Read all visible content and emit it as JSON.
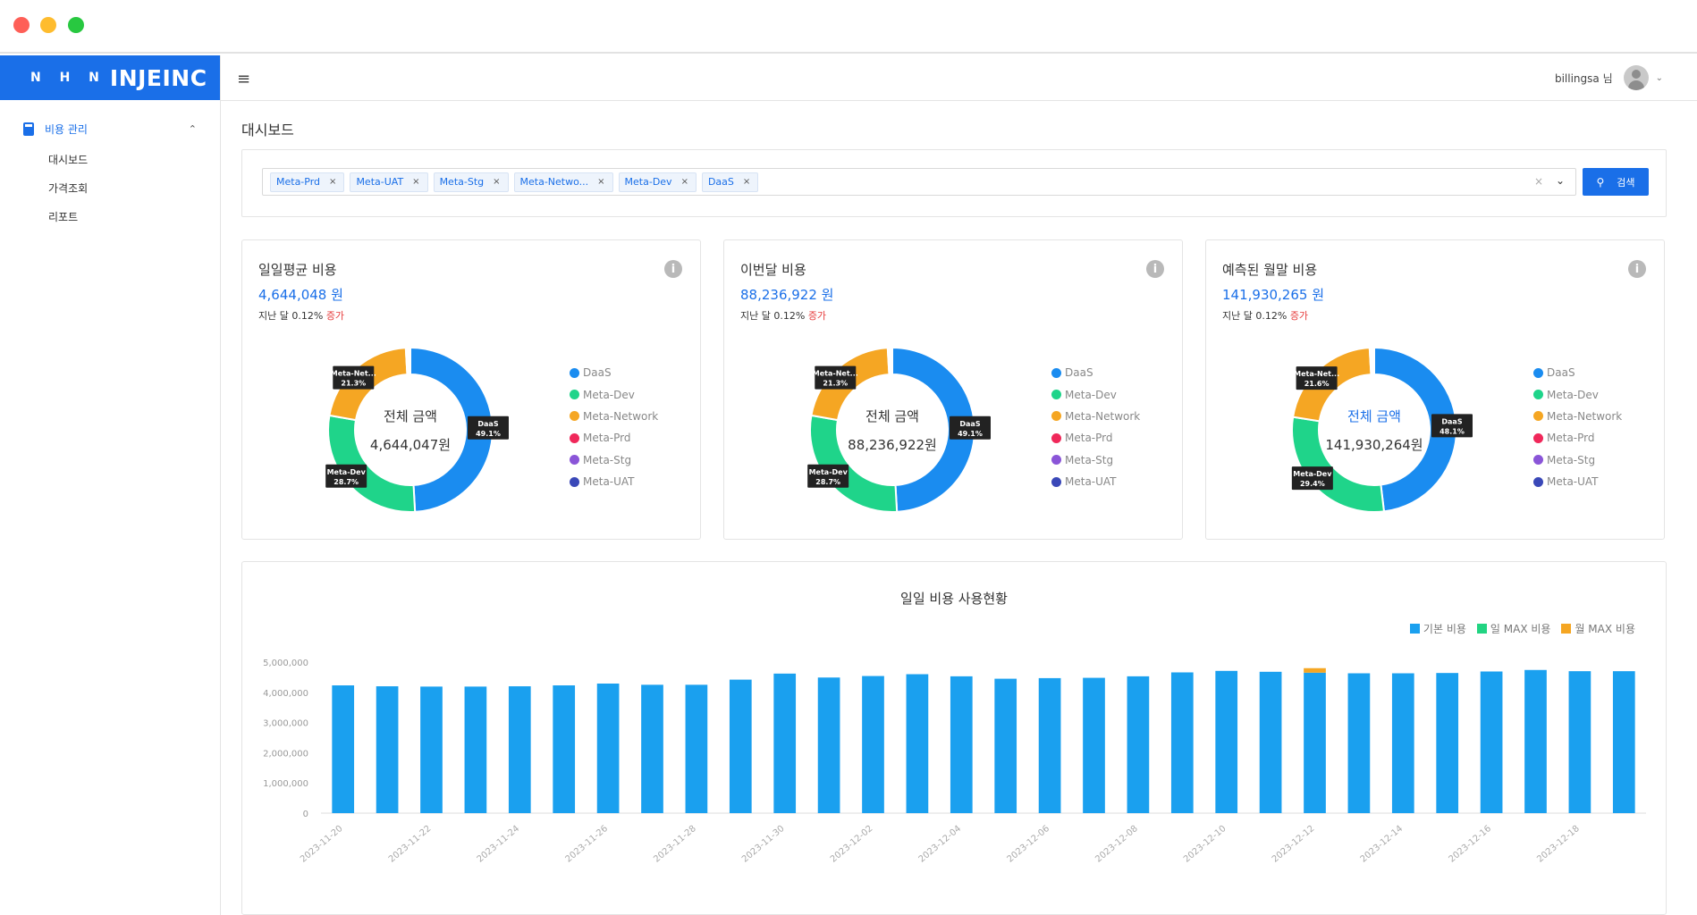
{
  "sidebar": {
    "logo_prefix": "N H N",
    "logo_brand": "INJEINC",
    "group_label": "비용 관리",
    "items": [
      {
        "label": "대시보드"
      },
      {
        "label": "가격조회"
      },
      {
        "label": "리포트"
      }
    ]
  },
  "topbar": {
    "username": "billingsa 님"
  },
  "page": {
    "title": "대시보드"
  },
  "filter": {
    "tags": [
      "Meta-Prd",
      "Meta-UAT",
      "Meta-Stg",
      "Meta-Netwo...",
      "Meta-Dev",
      "DaaS"
    ],
    "search_label": "검색"
  },
  "colors": {
    "accent": "#1a6fe8",
    "DaaS": "#1a8cf0",
    "Meta-Dev": "#1fd48a",
    "Meta-Network": "#f5a623",
    "Meta-Prd": "#f0285a",
    "Meta-Stg": "#8a55d8",
    "Meta-UAT": "#3a48b8",
    "bar_base": "#1aa0ef",
    "bar_daymax": "#22d482",
    "bar_monthmax": "#f5a623"
  },
  "cards": [
    {
      "title": "일일평균 비용",
      "amount": "4,644,048 원",
      "change_prefix": "지난 달 0.12%",
      "change_word": "증가",
      "center_label": "전체 금액",
      "center_value": "4,644,047원",
      "center_label_color": "#333333",
      "slices": [
        {
          "name": "DaaS",
          "value": 49.1,
          "label": "DaaS\n49.1%"
        },
        {
          "name": "Meta-Dev",
          "value": 28.7,
          "label": "Meta-Dev\n28.7%"
        },
        {
          "name": "Meta-Network",
          "value": 21.3,
          "label": "Meta-Net...\n21.3%"
        },
        {
          "name": "Meta-Prd",
          "value": 0.3,
          "label": ""
        },
        {
          "name": "Meta-Stg",
          "value": 0.3,
          "label": ""
        },
        {
          "name": "Meta-UAT",
          "value": 0.3,
          "label": ""
        }
      ]
    },
    {
      "title": "이번달 비용",
      "amount": "88,236,922 원",
      "change_prefix": "지난 달 0.12%",
      "change_word": "증가",
      "center_label": "전체 금액",
      "center_value": "88,236,922원",
      "center_label_color": "#333333",
      "slices": [
        {
          "name": "DaaS",
          "value": 49.1,
          "label": "DaaS\n49.1%"
        },
        {
          "name": "Meta-Dev",
          "value": 28.7,
          "label": "Meta-Dev\n28.7%"
        },
        {
          "name": "Meta-Network",
          "value": 21.3,
          "label": "Meta-Net...\n21.3%"
        },
        {
          "name": "Meta-Prd",
          "value": 0.3,
          "label": ""
        },
        {
          "name": "Meta-Stg",
          "value": 0.3,
          "label": ""
        },
        {
          "name": "Meta-UAT",
          "value": 0.3,
          "label": ""
        }
      ]
    },
    {
      "title": "예측된 월말 비용",
      "amount": "141,930,265 원",
      "change_prefix": "지난 달 0.12%",
      "change_word": "증가",
      "center_label": "전체 금액",
      "center_value": "141,930,264원",
      "center_label_color": "#1a6fe8",
      "slices": [
        {
          "name": "DaaS",
          "value": 48.1,
          "label": "DaaS\n48.1%"
        },
        {
          "name": "Meta-Dev",
          "value": 29.4,
          "label": "Meta-Dev\n29.4%"
        },
        {
          "name": "Meta-Network",
          "value": 21.6,
          "label": "Meta-Net...\n21.6%"
        },
        {
          "name": "Meta-Prd",
          "value": 0.3,
          "label": ""
        },
        {
          "name": "Meta-Stg",
          "value": 0.3,
          "label": ""
        },
        {
          "name": "Meta-UAT",
          "value": 0.3,
          "label": ""
        }
      ]
    }
  ],
  "legend_names": [
    "DaaS",
    "Meta-Dev",
    "Meta-Network",
    "Meta-Prd",
    "Meta-Stg",
    "Meta-UAT"
  ],
  "chart_data": {
    "type": "bar",
    "title": "일일 비용 사용현황",
    "series_names": [
      "기본 비용",
      "일 MAX 비용",
      "월 MAX 비용"
    ],
    "ylim": [
      0,
      5000000
    ],
    "yticks": [
      "0",
      "1,000,000",
      "2,000,000",
      "3,000,000",
      "4,000,000",
      "5,000,000"
    ],
    "grid": false,
    "legend_position": "top-right",
    "categories": [
      "2023-11-20",
      "2023-11-21",
      "2023-11-22",
      "2023-11-23",
      "2023-11-24",
      "2023-11-25",
      "2023-11-26",
      "2023-11-27",
      "2023-11-28",
      "2023-11-29",
      "2023-11-30",
      "2023-12-01",
      "2023-12-02",
      "2023-12-03",
      "2023-12-04",
      "2023-12-05",
      "2023-12-06",
      "2023-12-07",
      "2023-12-08",
      "2023-12-09",
      "2023-12-10",
      "2023-12-11",
      "2023-12-12",
      "2023-12-13",
      "2023-12-14",
      "2023-12-15",
      "2023-12-16",
      "2023-12-17",
      "2023-12-18",
      "2023-12-19"
    ],
    "xtick_labels": [
      "2023-11-20",
      "2023-11-22",
      "2023-11-24",
      "2023-11-26",
      "2023-11-28",
      "2023-11-30",
      "2023-12-02",
      "2023-12-04",
      "2023-12-06",
      "2023-12-08",
      "2023-12-10",
      "2023-12-12",
      "2023-12-14",
      "2023-12-16",
      "2023-12-18"
    ],
    "series": [
      {
        "name": "기본 비용",
        "values": [
          4230000,
          4200000,
          4190000,
          4190000,
          4200000,
          4230000,
          4290000,
          4250000,
          4250000,
          4420000,
          4620000,
          4490000,
          4540000,
          4600000,
          4530000,
          4450000,
          4470000,
          4480000,
          4530000,
          4660000,
          4710000,
          4680000,
          4650000,
          4630000,
          4630000,
          4640000,
          4690000,
          4740000,
          4700000,
          4700000
        ]
      },
      {
        "name": "일 MAX 비용",
        "values": [
          0,
          0,
          0,
          0,
          0,
          0,
          0,
          0,
          0,
          0,
          0,
          0,
          0,
          0,
          0,
          0,
          0,
          0,
          0,
          0,
          0,
          0,
          0,
          0,
          0,
          0,
          0,
          0,
          0,
          0
        ]
      },
      {
        "name": "월 MAX 비용",
        "values": [
          0,
          0,
          0,
          0,
          0,
          0,
          0,
          0,
          0,
          0,
          0,
          0,
          0,
          0,
          0,
          0,
          0,
          0,
          0,
          0,
          0,
          0,
          150000,
          0,
          0,
          0,
          0,
          0,
          0,
          0
        ]
      }
    ]
  }
}
